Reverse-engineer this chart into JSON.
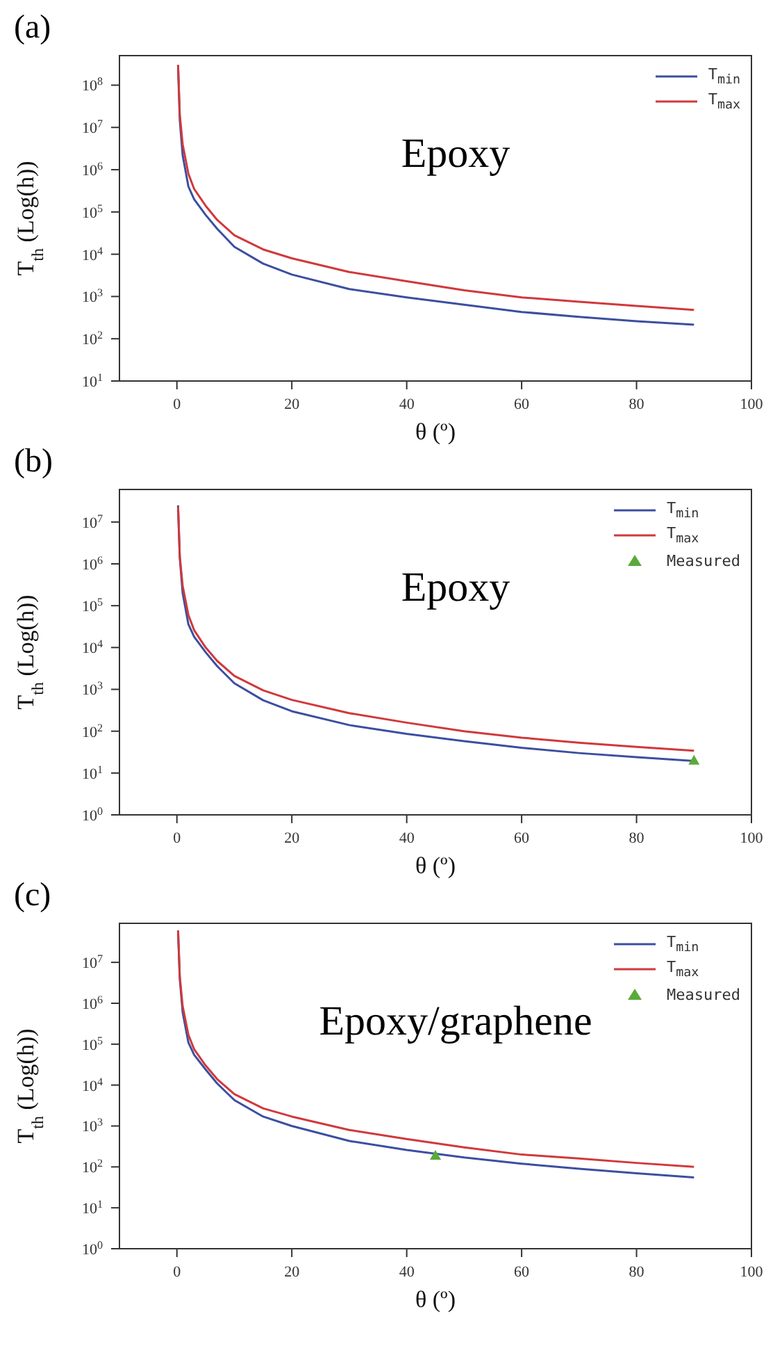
{
  "chart_data": [
    {
      "type": "line",
      "title": "(a)",
      "xlabel": "θ (º)",
      "ylabel": "T$_{th}$ (Log(h))",
      "annotations": [
        "Epoxy"
      ],
      "log": "y",
      "legend": "top right",
      "xlim": [
        -10,
        100
      ],
      "xticks": [
        0,
        20,
        40,
        60,
        80,
        100
      ],
      "ylim": [
        10,
        500000000
      ],
      "yticks": [
        {
          "value": 10,
          "label": "10$^{1}$"
        },
        {
          "value": 100,
          "label": "10$^{2}$"
        },
        {
          "value": 1000,
          "label": "10$^{3}$"
        },
        {
          "value": 10000,
          "label": "10$^{4}$"
        },
        {
          "value": 100000,
          "label": "10$^{5}$"
        },
        {
          "value": 1000000,
          "label": "10$^{6}$"
        },
        {
          "value": 10000000,
          "label": "10$^{7}$"
        },
        {
          "value": 100000000,
          "label": "10$^{8}$"
        }
      ],
      "x": [
        0.2,
        0.5,
        1,
        2,
        3,
        5,
        7,
        10,
        15,
        20,
        30,
        40,
        50,
        60,
        70,
        80,
        90
      ],
      "series": [
        {
          "name": "T$_{min}$",
          "color": "#3b4fa0",
          "values": [
            300000000,
            15000000,
            2200000,
            400000,
            200000,
            85000,
            40000,
            15000,
            6000,
            3300,
            1500,
            950,
            640,
            430,
            330,
            260,
            215
          ]
        },
        {
          "name": "T$_{max}$",
          "color": "#d0393b",
          "values": [
            300000000,
            20000000,
            4000000,
            800000,
            350000,
            140000,
            65000,
            28000,
            13000,
            8000,
            3800,
            2300,
            1400,
            950,
            750,
            600,
            480
          ]
        }
      ]
    },
    {
      "type": "line",
      "title": "(b)",
      "xlabel": "θ (º)",
      "ylabel": "T$_{th}$ (Log(h))",
      "annotations": [
        "Epoxy"
      ],
      "log": "y",
      "legend": "top right",
      "xlim": [
        -10,
        100
      ],
      "xticks": [
        0,
        20,
        40,
        60,
        80,
        100
      ],
      "ylim": [
        1,
        60000000
      ],
      "yticks": [
        {
          "value": 1,
          "label": "10$^{0}$"
        },
        {
          "value": 10,
          "label": "10$^{1}$"
        },
        {
          "value": 100,
          "label": "10$^{2}$"
        },
        {
          "value": 1000,
          "label": "10$^{3}$"
        },
        {
          "value": 10000,
          "label": "10$^{4}$"
        },
        {
          "value": 100000,
          "label": "10$^{5}$"
        },
        {
          "value": 1000000,
          "label": "10$^{6}$"
        },
        {
          "value": 10000000,
          "label": "10$^{7}$"
        }
      ],
      "x": [
        0.2,
        0.5,
        1,
        2,
        3,
        5,
        7,
        10,
        15,
        20,
        30,
        40,
        50,
        60,
        70,
        80,
        90
      ],
      "series": [
        {
          "name": "T$_{min}$",
          "color": "#3b4fa0",
          "values": [
            25000000,
            1400000,
            200000,
            36000,
            18000,
            7700,
            3600,
            1400,
            550,
            300,
            140,
            86,
            58,
            40,
            30,
            24,
            19.5
          ]
        },
        {
          "name": "T$_{max}$",
          "color": "#d0393b",
          "values": [
            23000000,
            1500000,
            300000,
            60000,
            26000,
            10000,
            4800,
            2100,
            950,
            560,
            270,
            160,
            100,
            70,
            53,
            42,
            34
          ]
        },
        {
          "name": "Measured",
          "type": "scatter",
          "marker": "triangle",
          "color": "#5aaa3a",
          "x": [
            90
          ],
          "values": [
            20
          ]
        }
      ]
    },
    {
      "type": "line",
      "title": "(c)",
      "xlabel": "θ (º)",
      "ylabel": "T$_{th}$ (Log(h))",
      "annotations": [
        "Epoxy/graphene"
      ],
      "log": "y",
      "legend": "top right",
      "xlim": [
        -10,
        100
      ],
      "xticks": [
        0,
        20,
        40,
        60,
        80,
        100
      ],
      "ylim": [
        1,
        90000000
      ],
      "yticks": [
        {
          "value": 1,
          "label": "10$^{0}$"
        },
        {
          "value": 10,
          "label": "10$^{1}$"
        },
        {
          "value": 100,
          "label": "10$^{2}$"
        },
        {
          "value": 1000,
          "label": "10$^{3}$"
        },
        {
          "value": 10000,
          "label": "10$^{4}$"
        },
        {
          "value": 100000,
          "label": "10$^{5}$"
        },
        {
          "value": 1000000,
          "label": "10$^{6}$"
        },
        {
          "value": 10000000,
          "label": "10$^{7}$"
        }
      ],
      "x": [
        0.2,
        0.5,
        1,
        2,
        3,
        5,
        7,
        10,
        15,
        20,
        30,
        40,
        50,
        60,
        70,
        80,
        90
      ],
      "series": [
        {
          "name": "T$_{min}$",
          "color": "#3b4fa0",
          "values": [
            60000000,
            4000000,
            600000,
            110000,
            55000,
            24000,
            11000,
            4300,
            1700,
            1000,
            430,
            260,
            170,
            120,
            90,
            70,
            55
          ]
        },
        {
          "name": "T$_{max}$",
          "color": "#d0393b",
          "values": [
            60000000,
            4500000,
            850000,
            170000,
            75000,
            30000,
            14000,
            6000,
            2700,
            1700,
            800,
            480,
            300,
            200,
            160,
            125,
            100
          ]
        },
        {
          "name": "Measured",
          "type": "scatter",
          "marker": "triangle",
          "color": "#5aaa3a",
          "x": [
            45
          ],
          "values": [
            190
          ]
        }
      ]
    }
  ]
}
